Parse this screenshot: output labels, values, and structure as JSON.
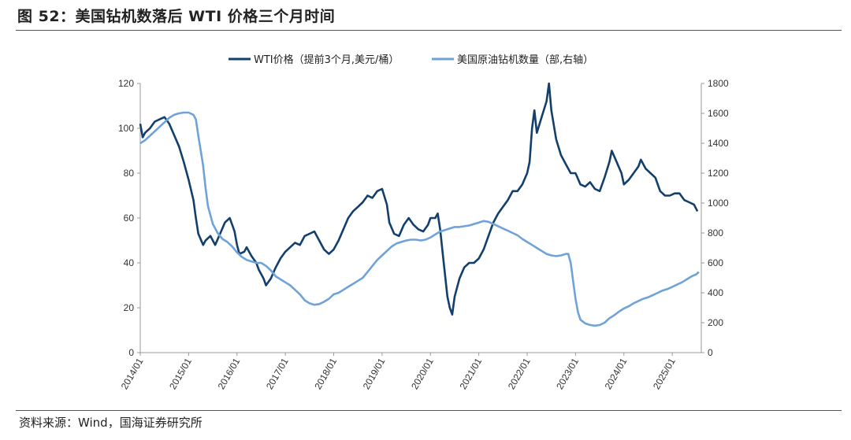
{
  "title": "图 52：美国钻机数落后 WTI 价格三个月时间",
  "source": "资料来源：Wind，国海证券研究所",
  "chart_data": {
    "type": "line",
    "legend": [
      {
        "name": "WTI价格（提前3个月,美元/桶）",
        "color": "#123F6B"
      },
      {
        "name": "美国原油钻机数量（部,右轴）",
        "color": "#6FA3D8"
      }
    ],
    "x_ticks": [
      "2014/01",
      "2015/01",
      "2016/01",
      "2017/01",
      "2018/01",
      "2019/01",
      "2020/01",
      "2021/01",
      "2022/01",
      "2023/01",
      "2024/01",
      "2025/01"
    ],
    "x_range": [
      2014.0,
      2025.6
    ],
    "y_left": {
      "min": 0,
      "max": 120,
      "ticks": [
        0,
        20,
        40,
        60,
        80,
        100,
        120
      ]
    },
    "y_right": {
      "min": 0,
      "max": 1800,
      "ticks": [
        0,
        200,
        400,
        600,
        800,
        1000,
        1200,
        1400,
        1600,
        1800
      ]
    },
    "series": [
      {
        "name": "WTI价格（提前3个月,美元/桶）",
        "axis": "left",
        "points": [
          [
            2014.0,
            102
          ],
          [
            2014.05,
            96
          ],
          [
            2014.1,
            98
          ],
          [
            2014.2,
            100
          ],
          [
            2014.3,
            103
          ],
          [
            2014.4,
            104
          ],
          [
            2014.5,
            105
          ],
          [
            2014.6,
            102
          ],
          [
            2014.7,
            97
          ],
          [
            2014.8,
            92
          ],
          [
            2014.9,
            85
          ],
          [
            2015.0,
            77
          ],
          [
            2015.1,
            68
          ],
          [
            2015.15,
            60
          ],
          [
            2015.2,
            53
          ],
          [
            2015.3,
            48
          ],
          [
            2015.35,
            50
          ],
          [
            2015.45,
            52
          ],
          [
            2015.55,
            48
          ],
          [
            2015.65,
            53
          ],
          [
            2015.75,
            58
          ],
          [
            2015.85,
            60
          ],
          [
            2015.95,
            54
          ],
          [
            2016.0,
            48
          ],
          [
            2016.05,
            44
          ],
          [
            2016.15,
            45
          ],
          [
            2016.2,
            47
          ],
          [
            2016.3,
            43
          ],
          [
            2016.4,
            40
          ],
          [
            2016.45,
            37
          ],
          [
            2016.55,
            33
          ],
          [
            2016.6,
            30
          ],
          [
            2016.7,
            33
          ],
          [
            2016.8,
            38
          ],
          [
            2016.9,
            42
          ],
          [
            2017.0,
            45
          ],
          [
            2017.1,
            47
          ],
          [
            2017.2,
            49
          ],
          [
            2017.3,
            48
          ],
          [
            2017.4,
            52
          ],
          [
            2017.5,
            53
          ],
          [
            2017.6,
            54
          ],
          [
            2017.7,
            50
          ],
          [
            2017.8,
            46
          ],
          [
            2017.9,
            44
          ],
          [
            2018.0,
            46
          ],
          [
            2018.1,
            50
          ],
          [
            2018.2,
            55
          ],
          [
            2018.3,
            60
          ],
          [
            2018.4,
            63
          ],
          [
            2018.5,
            65
          ],
          [
            2018.6,
            67
          ],
          [
            2018.7,
            70
          ],
          [
            2018.8,
            69
          ],
          [
            2018.9,
            72
          ],
          [
            2019.0,
            73
          ],
          [
            2019.1,
            66
          ],
          [
            2019.15,
            58
          ],
          [
            2019.25,
            53
          ],
          [
            2019.35,
            52
          ],
          [
            2019.45,
            57
          ],
          [
            2019.55,
            60
          ],
          [
            2019.65,
            57
          ],
          [
            2019.75,
            55
          ],
          [
            2019.85,
            54
          ],
          [
            2019.95,
            57
          ],
          [
            2020.0,
            60
          ],
          [
            2020.1,
            60
          ],
          [
            2020.15,
            62
          ],
          [
            2020.2,
            55
          ],
          [
            2020.25,
            45
          ],
          [
            2020.3,
            35
          ],
          [
            2020.35,
            25
          ],
          [
            2020.4,
            20
          ],
          [
            2020.45,
            17
          ],
          [
            2020.5,
            25
          ],
          [
            2020.6,
            33
          ],
          [
            2020.7,
            38
          ],
          [
            2020.8,
            40
          ],
          [
            2020.9,
            40
          ],
          [
            2021.0,
            42
          ],
          [
            2021.1,
            46
          ],
          [
            2021.2,
            52
          ],
          [
            2021.3,
            58
          ],
          [
            2021.4,
            62
          ],
          [
            2021.5,
            65
          ],
          [
            2021.6,
            68
          ],
          [
            2021.7,
            72
          ],
          [
            2021.8,
            72
          ],
          [
            2021.9,
            75
          ],
          [
            2022.0,
            80
          ],
          [
            2022.05,
            85
          ],
          [
            2022.1,
            100
          ],
          [
            2022.15,
            108
          ],
          [
            2022.2,
            98
          ],
          [
            2022.3,
            105
          ],
          [
            2022.4,
            112
          ],
          [
            2022.45,
            120
          ],
          [
            2022.5,
            108
          ],
          [
            2022.6,
            95
          ],
          [
            2022.7,
            88
          ],
          [
            2022.8,
            84
          ],
          [
            2022.9,
            80
          ],
          [
            2023.0,
            80
          ],
          [
            2023.1,
            75
          ],
          [
            2023.2,
            74
          ],
          [
            2023.3,
            76
          ],
          [
            2023.4,
            73
          ],
          [
            2023.5,
            72
          ],
          [
            2023.6,
            78
          ],
          [
            2023.7,
            85
          ],
          [
            2023.75,
            90
          ],
          [
            2023.85,
            85
          ],
          [
            2023.95,
            80
          ],
          [
            2024.0,
            75
          ],
          [
            2024.1,
            77
          ],
          [
            2024.2,
            80
          ],
          [
            2024.3,
            83
          ],
          [
            2024.35,
            86
          ],
          [
            2024.45,
            82
          ],
          [
            2024.55,
            80
          ],
          [
            2024.65,
            78
          ],
          [
            2024.75,
            72
          ],
          [
            2024.85,
            70
          ],
          [
            2024.95,
            70
          ],
          [
            2025.05,
            71
          ],
          [
            2025.15,
            71
          ],
          [
            2025.25,
            68
          ],
          [
            2025.35,
            67
          ],
          [
            2025.45,
            66
          ],
          [
            2025.52,
            63
          ]
        ]
      },
      {
        "name": "美国原油钻机数量（部,右轴）",
        "axis": "right",
        "points": [
          [
            2014.0,
            1400
          ],
          [
            2014.1,
            1420
          ],
          [
            2014.2,
            1450
          ],
          [
            2014.3,
            1480
          ],
          [
            2014.4,
            1510
          ],
          [
            2014.5,
            1540
          ],
          [
            2014.6,
            1570
          ],
          [
            2014.7,
            1590
          ],
          [
            2014.8,
            1600
          ],
          [
            2014.9,
            1605
          ],
          [
            2015.0,
            1605
          ],
          [
            2015.1,
            1590
          ],
          [
            2015.15,
            1560
          ],
          [
            2015.2,
            1450
          ],
          [
            2015.3,
            1250
          ],
          [
            2015.35,
            1100
          ],
          [
            2015.4,
            980
          ],
          [
            2015.5,
            860
          ],
          [
            2015.6,
            800
          ],
          [
            2015.7,
            760
          ],
          [
            2015.8,
            740
          ],
          [
            2015.9,
            710
          ],
          [
            2016.0,
            670
          ],
          [
            2016.1,
            640
          ],
          [
            2016.2,
            620
          ],
          [
            2016.3,
            610
          ],
          [
            2016.4,
            600
          ],
          [
            2016.5,
            600
          ],
          [
            2016.6,
            580
          ],
          [
            2016.7,
            550
          ],
          [
            2016.8,
            510
          ],
          [
            2016.9,
            490
          ],
          [
            2017.0,
            470
          ],
          [
            2017.1,
            450
          ],
          [
            2017.2,
            420
          ],
          [
            2017.3,
            390
          ],
          [
            2017.4,
            350
          ],
          [
            2017.5,
            330
          ],
          [
            2017.6,
            320
          ],
          [
            2017.7,
            325
          ],
          [
            2017.8,
            340
          ],
          [
            2017.9,
            360
          ],
          [
            2018.0,
            390
          ],
          [
            2018.1,
            400
          ],
          [
            2018.2,
            420
          ],
          [
            2018.3,
            440
          ],
          [
            2018.4,
            460
          ],
          [
            2018.5,
            480
          ],
          [
            2018.6,
            500
          ],
          [
            2018.7,
            540
          ],
          [
            2018.8,
            580
          ],
          [
            2018.9,
            620
          ],
          [
            2019.0,
            650
          ],
          [
            2019.1,
            680
          ],
          [
            2019.2,
            710
          ],
          [
            2019.3,
            730
          ],
          [
            2019.4,
            740
          ],
          [
            2019.5,
            750
          ],
          [
            2019.6,
            755
          ],
          [
            2019.7,
            755
          ],
          [
            2019.8,
            750
          ],
          [
            2019.9,
            755
          ],
          [
            2020.0,
            770
          ],
          [
            2020.1,
            790
          ],
          [
            2020.2,
            810
          ],
          [
            2020.3,
            820
          ],
          [
            2020.4,
            830
          ],
          [
            2020.5,
            840
          ],
          [
            2020.6,
            840
          ],
          [
            2020.7,
            845
          ],
          [
            2020.8,
            850
          ],
          [
            2020.9,
            860
          ],
          [
            2021.0,
            870
          ],
          [
            2021.1,
            880
          ],
          [
            2021.2,
            875
          ],
          [
            2021.3,
            860
          ],
          [
            2021.4,
            845
          ],
          [
            2021.5,
            830
          ],
          [
            2021.6,
            815
          ],
          [
            2021.7,
            800
          ],
          [
            2021.8,
            785
          ],
          [
            2021.9,
            760
          ],
          [
            2022.0,
            740
          ],
          [
            2022.1,
            720
          ],
          [
            2022.2,
            700
          ],
          [
            2022.3,
            680
          ],
          [
            2022.4,
            660
          ],
          [
            2022.5,
            650
          ],
          [
            2022.6,
            645
          ],
          [
            2022.7,
            650
          ],
          [
            2022.8,
            660
          ],
          [
            2022.85,
            660
          ],
          [
            2022.9,
            600
          ],
          [
            2022.95,
            480
          ],
          [
            2023.0,
            360
          ],
          [
            2023.05,
            270
          ],
          [
            2023.1,
            220
          ],
          [
            2023.2,
            195
          ],
          [
            2023.3,
            185
          ],
          [
            2023.4,
            180
          ],
          [
            2023.5,
            185
          ],
          [
            2023.6,
            200
          ],
          [
            2023.7,
            230
          ],
          [
            2023.8,
            250
          ],
          [
            2023.9,
            275
          ],
          [
            2024.0,
            295
          ],
          [
            2024.1,
            310
          ],
          [
            2024.2,
            330
          ],
          [
            2024.3,
            345
          ],
          [
            2024.4,
            360
          ],
          [
            2024.5,
            370
          ],
          [
            2024.6,
            385
          ],
          [
            2024.7,
            400
          ],
          [
            2024.8,
            415
          ],
          [
            2024.9,
            425
          ],
          [
            2025.0,
            440
          ],
          [
            2025.1,
            455
          ],
          [
            2025.2,
            470
          ],
          [
            2025.3,
            490
          ],
          [
            2025.4,
            510
          ],
          [
            2025.5,
            525
          ],
          [
            2025.55,
            540
          ]
        ]
      }
    ]
  }
}
